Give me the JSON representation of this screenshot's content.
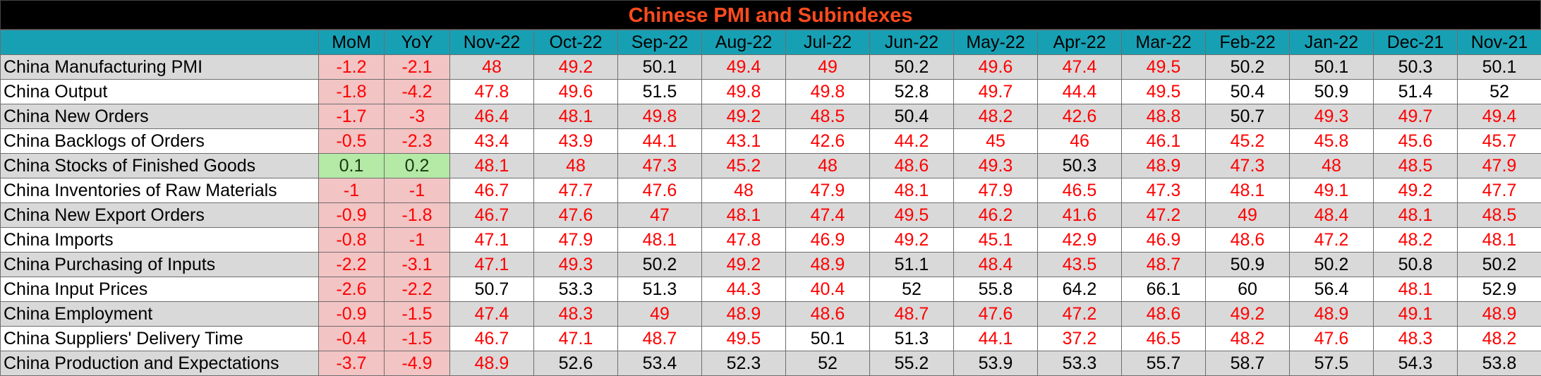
{
  "title": "Chinese PMI and Subindexes",
  "columns": [
    "MoM",
    "YoY",
    "Nov-22",
    "Oct-22",
    "Sep-22",
    "Aug-22",
    "Jul-22",
    "Jun-22",
    "May-22",
    "Apr-22",
    "Mar-22",
    "Feb-22",
    "Jan-22",
    "Dec-21",
    "Nov-21"
  ],
  "rows": [
    {
      "label": "China Manufacturing PMI",
      "values": [
        -1.2,
        -2.1,
        48,
        49.2,
        50.1,
        49.4,
        49,
        50.2,
        49.6,
        47.4,
        49.5,
        50.2,
        50.1,
        50.3,
        50.1
      ]
    },
    {
      "label": "China Output",
      "values": [
        -1.8,
        -4.2,
        47.8,
        49.6,
        51.5,
        49.8,
        49.8,
        52.8,
        49.7,
        44.4,
        49.5,
        50.4,
        50.9,
        51.4,
        52
      ]
    },
    {
      "label": "China New Orders",
      "values": [
        -1.7,
        -3,
        46.4,
        48.1,
        49.8,
        49.2,
        48.5,
        50.4,
        48.2,
        42.6,
        48.8,
        50.7,
        49.3,
        49.7,
        49.4
      ]
    },
    {
      "label": "China Backlogs of Orders",
      "values": [
        -0.5,
        -2.3,
        43.4,
        43.9,
        44.1,
        43.1,
        42.6,
        44.2,
        45,
        46,
        46.1,
        45.2,
        45.8,
        45.6,
        45.7
      ]
    },
    {
      "label": "China Stocks of Finished Goods",
      "values": [
        0.1,
        0.2,
        48.1,
        48,
        47.3,
        45.2,
        48,
        48.6,
        49.3,
        50.3,
        48.9,
        47.3,
        48,
        48.5,
        47.9
      ]
    },
    {
      "label": "China Inventories of Raw Materials",
      "values": [
        -1,
        -1,
        46.7,
        47.7,
        47.6,
        48,
        47.9,
        48.1,
        47.9,
        46.5,
        47.3,
        48.1,
        49.1,
        49.2,
        47.7
      ]
    },
    {
      "label": "China New Export Orders",
      "values": [
        -0.9,
        -1.8,
        46.7,
        47.6,
        47,
        48.1,
        47.4,
        49.5,
        46.2,
        41.6,
        47.2,
        49,
        48.4,
        48.1,
        48.5
      ]
    },
    {
      "label": "China Imports",
      "values": [
        -0.8,
        -1,
        47.1,
        47.9,
        48.1,
        47.8,
        46.9,
        49.2,
        45.1,
        42.9,
        46.9,
        48.6,
        47.2,
        48.2,
        48.1
      ]
    },
    {
      "label": "China Purchasing of Inputs",
      "values": [
        -2.2,
        -3.1,
        47.1,
        49.3,
        50.2,
        49.2,
        48.9,
        51.1,
        48.4,
        43.5,
        48.7,
        50.9,
        50.2,
        50.8,
        50.2
      ]
    },
    {
      "label": "China Input Prices",
      "values": [
        -2.6,
        -2.2,
        50.7,
        53.3,
        51.3,
        44.3,
        40.4,
        52,
        55.8,
        64.2,
        66.1,
        60,
        56.4,
        48.1,
        52.9
      ]
    },
    {
      "label": "China Employment",
      "values": [
        -0.9,
        -1.5,
        47.4,
        48.3,
        49,
        48.9,
        48.6,
        48.7,
        47.6,
        47.2,
        48.6,
        49.2,
        48.9,
        49.1,
        48.9
      ]
    },
    {
      "label": "China Suppliers' Delivery Time",
      "values": [
        -0.4,
        -1.5,
        46.7,
        47.1,
        48.7,
        49.5,
        50.1,
        51.3,
        44.1,
        37.2,
        46.5,
        48.2,
        47.6,
        48.3,
        48.2
      ]
    },
    {
      "label": "China Production and Expectations",
      "values": [
        -3.7,
        -4.9,
        48.9,
        52.6,
        53.4,
        52.3,
        52,
        55.2,
        53.9,
        53.3,
        55.7,
        58.7,
        57.5,
        54.3,
        53.8
      ]
    }
  ]
}
